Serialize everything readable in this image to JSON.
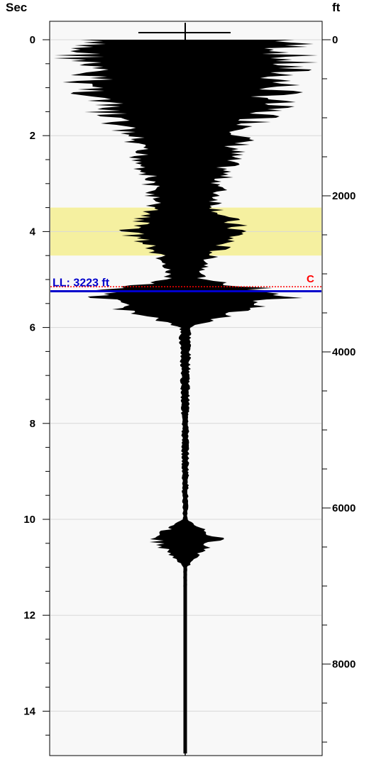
{
  "chart_data": {
    "type": "line",
    "left_axis": {
      "unit_label": "Sec",
      "ticks": [
        0,
        2,
        4,
        6,
        8,
        10,
        12,
        14
      ],
      "range": [
        -0.4,
        15.0
      ]
    },
    "right_axis": {
      "unit_label": "ft",
      "ticks": [
        0,
        2000,
        4000,
        6000,
        8000
      ],
      "range": [
        0,
        9000
      ]
    },
    "grid": true,
    "highlight_band": {
      "from_sec": 3.5,
      "to_sec": 4.5,
      "color": "#f5f0a0"
    },
    "marker_line": {
      "label": "LL: 3223 ft",
      "depth_ft": 3223,
      "sec": 5.2,
      "color": "#0000cc"
    },
    "event_line": {
      "label": "C",
      "sec": 5.15,
      "color": "#ff0000"
    },
    "trace_envelope": {
      "sec": [
        0.0,
        0.5,
        1.0,
        1.5,
        2.0,
        2.5,
        3.0,
        3.5,
        4.0,
        4.5,
        5.0,
        5.3,
        6.0,
        7.0,
        8.0,
        9.0,
        10.0,
        10.4,
        11.0,
        12.0,
        13.0,
        14.0,
        15.0
      ],
      "amplitude": [
        1.0,
        0.98,
        0.9,
        0.78,
        0.55,
        0.42,
        0.33,
        0.3,
        0.52,
        0.25,
        0.15,
        1.0,
        0.05,
        0.04,
        0.03,
        0.03,
        0.02,
        0.3,
        0.015,
        0.012,
        0.01,
        0.01,
        0.01
      ]
    },
    "colors": {
      "trace": "#000000",
      "grid": "#d8d8d8",
      "plot_bg": "#f8f8f8"
    }
  }
}
